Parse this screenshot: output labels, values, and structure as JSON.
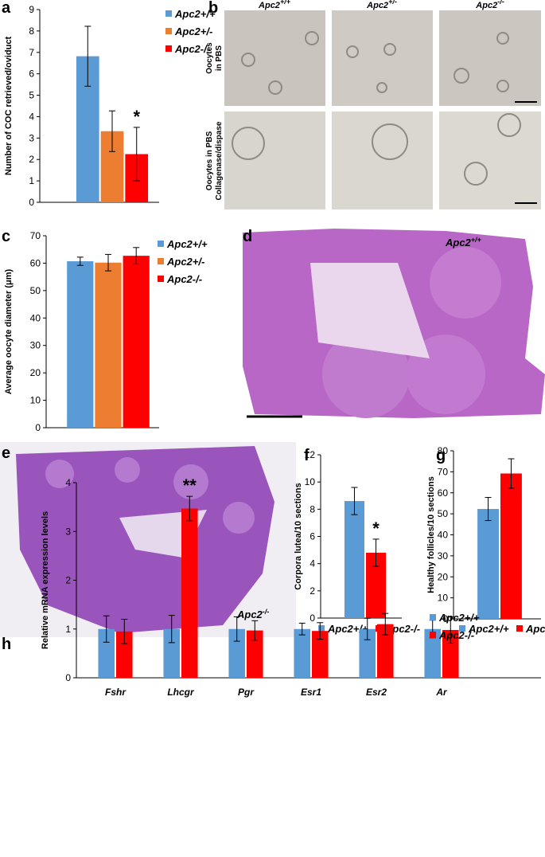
{
  "panel_labels": [
    "a",
    "b",
    "c",
    "d",
    "e",
    "f",
    "g",
    "h"
  ],
  "images": {
    "b": {
      "columns": [
        {
          "base": "Apc2",
          "sup": "+/+"
        },
        {
          "base": "Apc2",
          "sup": "+/-"
        },
        {
          "base": "Apc2",
          "sup": "-/-"
        }
      ],
      "rows": [
        [
          "Oocytes",
          "in PBS"
        ],
        [
          "Oocytes in PBS",
          "Collagenase/dispase"
        ]
      ]
    },
    "d": {
      "label": {
        "base": "Apc2",
        "sup": "+/+"
      }
    },
    "e": {
      "label": {
        "base": "Apc2",
        "sup": "-/-"
      }
    }
  },
  "chart_data": [
    {
      "type": "bar",
      "ylabel": "Number of COC retrieved/oviduct",
      "categories": [
        null
      ],
      "series": [
        {
          "name": "Apc2+/+",
          "color": "#5b9bd5",
          "values": [
            6.82
          ],
          "errors": [
            1.4
          ]
        },
        {
          "name": "Apc2+/-",
          "color": "#ed7d31",
          "values": [
            3.32
          ],
          "errors": [
            0.95
          ]
        },
        {
          "name": "Apc2-/-",
          "color": "#ff0000",
          "values": [
            2.25
          ],
          "errors": [
            1.25
          ]
        }
      ],
      "ylim": [
        0,
        9
      ],
      "yticks": [
        0,
        1,
        2,
        3,
        4,
        5,
        6,
        7,
        8,
        9
      ],
      "legend": "right",
      "annotation": "*"
    },
    {
      "type": "bar",
      "ylabel": "Average oocyte diameter (μm)",
      "categories": [
        null
      ],
      "series": [
        {
          "name": "Apc2+/+",
          "color": "#5b9bd5",
          "values": [
            60.7
          ],
          "errors": [
            1.5
          ]
        },
        {
          "name": "Apc2+/-",
          "color": "#ed7d31",
          "values": [
            60.2
          ],
          "errors": [
            3
          ]
        },
        {
          "name": "Apc2-/-",
          "color": "#ff0000",
          "values": [
            62.7
          ],
          "errors": [
            3
          ]
        }
      ],
      "ylim": [
        0,
        70
      ],
      "yticks": [
        0,
        10,
        20,
        30,
        40,
        50,
        60,
        70
      ],
      "legend": "right"
    },
    {
      "type": "bar",
      "ylabel": "Corpora lutea/10 sections",
      "categories": [
        null
      ],
      "series": [
        {
          "name": "Apc2+/+",
          "color": "#5b9bd5",
          "values": [
            8.6
          ],
          "errors": [
            1
          ]
        },
        {
          "name": "Apc2-/-",
          "color": "#ff0000",
          "values": [
            4.8
          ],
          "errors": [
            1
          ]
        }
      ],
      "ylim": [
        0,
        12
      ],
      "yticks": [
        0,
        2,
        4,
        6,
        8,
        10,
        12
      ],
      "legend": "bottom",
      "annotation": "*"
    },
    {
      "type": "bar",
      "ylabel": "Healthy follicles/10 sections",
      "categories": [
        null
      ],
      "series": [
        {
          "name": "Apc2+/+",
          "color": "#5b9bd5",
          "values": [
            52.3
          ],
          "errors": [
            5.5
          ]
        },
        {
          "name": "Apc2-/-",
          "color": "#ff0000",
          "values": [
            69.2
          ],
          "errors": [
            7
          ]
        }
      ],
      "ylim": [
        0,
        80
      ],
      "yticks": [
        0,
        10,
        20,
        30,
        40,
        50,
        60,
        70,
        80
      ],
      "legend": "bottom"
    },
    {
      "type": "bar",
      "ylabel": "Relative mRNA expression levels",
      "categories": [
        "Fshr",
        "Lhcgr",
        "Pgr",
        "Esr1",
        "Esr2",
        "Ar"
      ],
      "series": [
        {
          "name": "Apc2+/+",
          "color": "#5b9bd5",
          "values": [
            1,
            1,
            1,
            1,
            1,
            1
          ],
          "errors": [
            0.27,
            0.28,
            0.25,
            0.12,
            0.22,
            0.18
          ]
        },
        {
          "name": "Apc2-/-",
          "color": "#ff0000",
          "values": [
            0.95,
            3.47,
            0.97,
            0.96,
            1.1,
            0.98
          ],
          "errors": [
            0.25,
            0.25,
            0.2,
            0.17,
            0.22,
            0.27
          ]
        }
      ],
      "ylim": [
        0,
        4
      ],
      "yticks": [
        0,
        1,
        2,
        3,
        4
      ],
      "legend": "right",
      "annotation": "**"
    }
  ]
}
